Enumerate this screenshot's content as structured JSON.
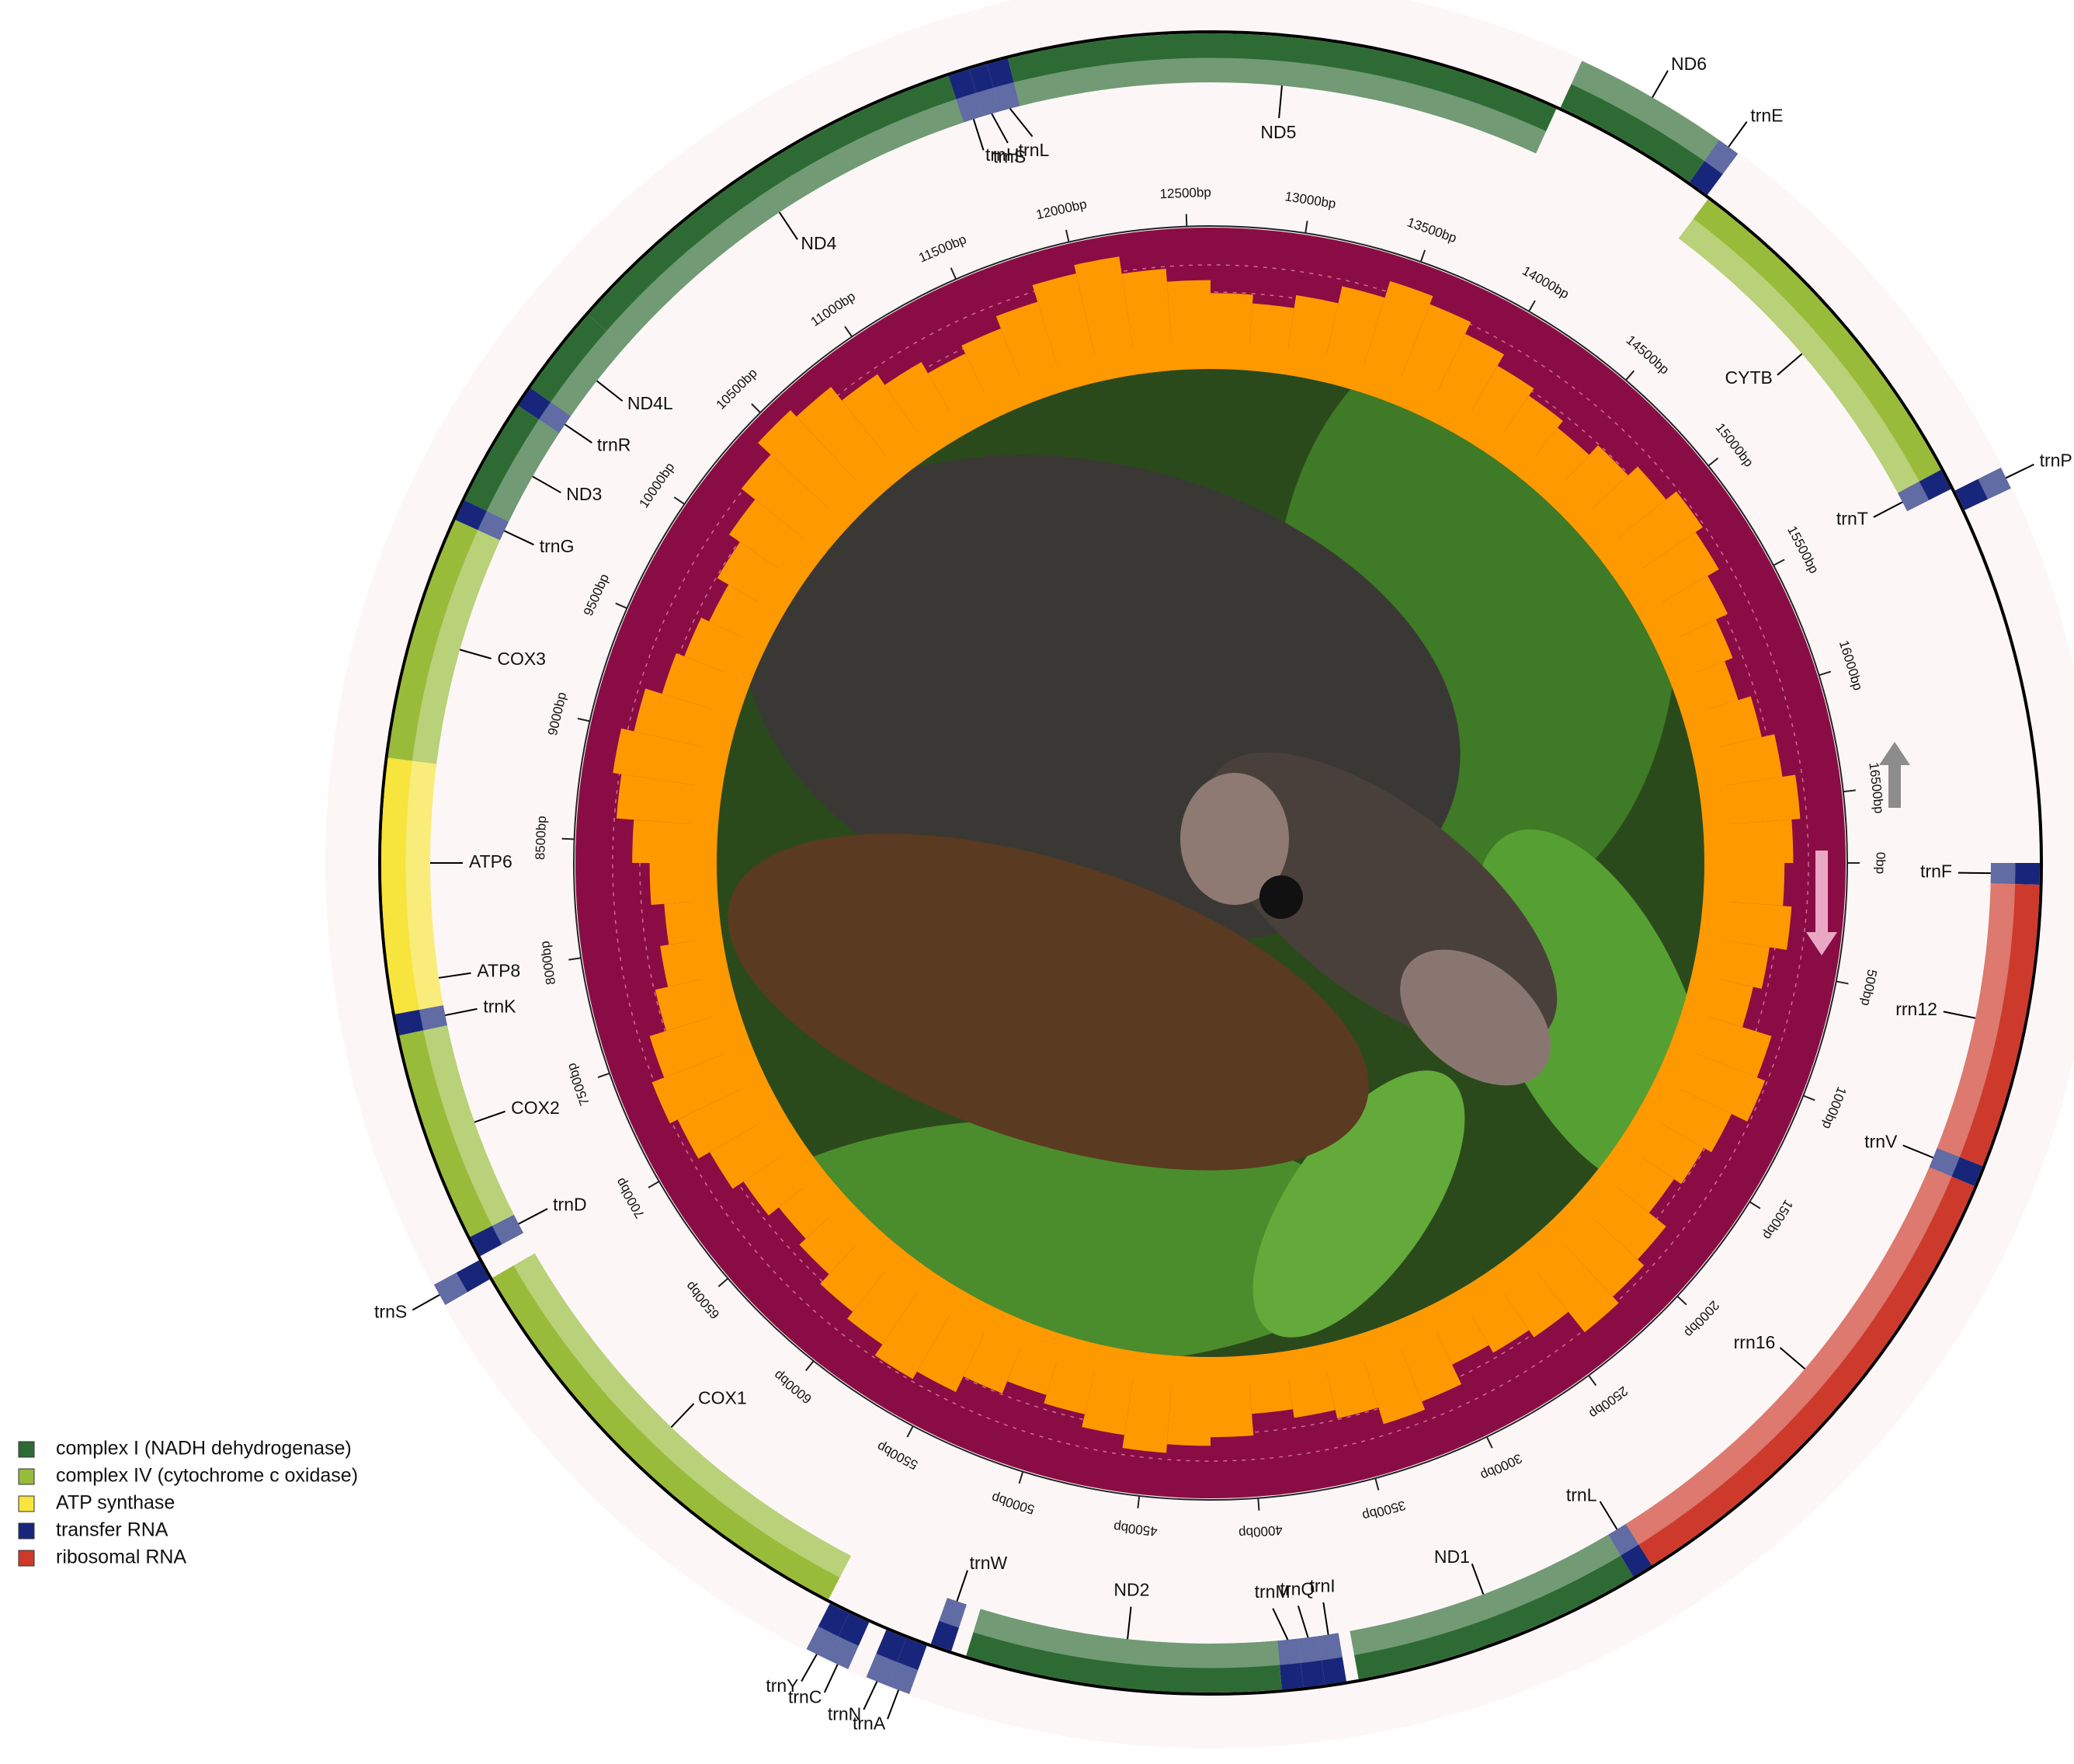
{
  "axis": {
    "xlim": [
      0,
      16800
    ],
    "ticks": [
      {
        "value": 0,
        "label": "0bp"
      },
      {
        "value": 500,
        "label": "500bp"
      },
      {
        "value": 1000,
        "label": "1000bp"
      },
      {
        "value": 1500,
        "label": "1500bp"
      },
      {
        "value": 2000,
        "label": "2000bp"
      },
      {
        "value": 2500,
        "label": "2500bp"
      },
      {
        "value": 3000,
        "label": "3000bp"
      },
      {
        "value": 3500,
        "label": "3500bp"
      },
      {
        "value": 4000,
        "label": "4000bp"
      },
      {
        "value": 4500,
        "label": "4500bp"
      },
      {
        "value": 5000,
        "label": "5000bp"
      },
      {
        "value": 5500,
        "label": "5500bp"
      },
      {
        "value": 6000,
        "label": "6000bp"
      },
      {
        "value": 6500,
        "label": "6500bp"
      },
      {
        "value": 7000,
        "label": "7000bp"
      },
      {
        "value": 7500,
        "label": "7500bp"
      },
      {
        "value": 8000,
        "label": "8000bp"
      },
      {
        "value": 8500,
        "label": "8500bp"
      },
      {
        "value": 9000,
        "label": "9000bp"
      },
      {
        "value": 9500,
        "label": "9500bp"
      },
      {
        "value": 10000,
        "label": "10000bp"
      },
      {
        "value": 10500,
        "label": "10500bp"
      },
      {
        "value": 11000,
        "label": "11000bp"
      },
      {
        "value": 11500,
        "label": "11500bp"
      },
      {
        "value": 12000,
        "label": "12000bp"
      },
      {
        "value": 12500,
        "label": "12500bp"
      },
      {
        "value": 13000,
        "label": "13000bp"
      },
      {
        "value": 13500,
        "label": "13500bp"
      },
      {
        "value": 14000,
        "label": "14000bp"
      },
      {
        "value": 14500,
        "label": "14500bp"
      },
      {
        "value": 15000,
        "label": "15000bp"
      },
      {
        "value": 15500,
        "label": "15500bp"
      },
      {
        "value": 16000,
        "label": "16000bp"
      },
      {
        "value": 16500,
        "label": "16500bp"
      }
    ]
  },
  "legend": [
    {
      "name": "complex I (NADH dehydrogenase)",
      "color": "#2e6b34"
    },
    {
      "name": "complex IV (cytochrome c oxidase)",
      "color": "#99bb3a"
    },
    {
      "name": "ATP synthase",
      "color": "#f7e43c"
    },
    {
      "name": "transfer RNA",
      "color": "#17267a"
    },
    {
      "name": "ribosomal RNA",
      "color": "#cd3a2c"
    }
  ],
  "genes": [
    {
      "name": "trnF",
      "group": 3,
      "start": 0,
      "end": 70,
      "strand": "+"
    },
    {
      "name": "rrn12",
      "group": 4,
      "start": 70,
      "end": 1000,
      "strand": "+"
    },
    {
      "name": "trnV",
      "group": 3,
      "start": 1000,
      "end": 1070,
      "strand": "+"
    },
    {
      "name": "rrn16",
      "group": 4,
      "start": 1070,
      "end": 2700,
      "strand": "+"
    },
    {
      "name": "trnL",
      "group": 3,
      "start": 2700,
      "end": 2770,
      "strand": "+"
    },
    {
      "name": "ND1",
      "group": 0,
      "start": 2770,
      "end": 3720,
      "strand": "+"
    },
    {
      "name": "trnI",
      "group": 3,
      "start": 3760,
      "end": 3830,
      "strand": "+"
    },
    {
      "name": "trnQ",
      "group": 3,
      "start": 3830,
      "end": 3900,
      "strand": "+"
    },
    {
      "name": "trnM",
      "group": 3,
      "start": 3900,
      "end": 3970,
      "strand": "+"
    },
    {
      "name": "ND2",
      "group": 0,
      "start": 3970,
      "end": 5000,
      "strand": "+"
    },
    {
      "name": "trnW",
      "group": 3,
      "start": 5050,
      "end": 5120,
      "strand": "+"
    },
    {
      "name": "trnA",
      "group": 3,
      "start": 5130,
      "end": 5200,
      "strand": "-"
    },
    {
      "name": "trnN",
      "group": 3,
      "start": 5200,
      "end": 5270,
      "strand": "-"
    },
    {
      "name": "trnC",
      "group": 3,
      "start": 5330,
      "end": 5400,
      "strand": "-"
    },
    {
      "name": "trnY",
      "group": 3,
      "start": 5400,
      "end": 5470,
      "strand": "-"
    },
    {
      "name": "COX1",
      "group": 1,
      "start": 5480,
      "end": 7000,
      "strand": "+"
    },
    {
      "name": "trnS",
      "group": 3,
      "start": 7000,
      "end": 7070,
      "strand": "-"
    },
    {
      "name": "trnD",
      "group": 3,
      "start": 7080,
      "end": 7150,
      "strand": "+"
    },
    {
      "name": "COX2",
      "group": 1,
      "start": 7150,
      "end": 7840,
      "strand": "+"
    },
    {
      "name": "trnK",
      "group": 3,
      "start": 7840,
      "end": 7910,
      "strand": "+"
    },
    {
      "name": "ATP8",
      "group": 2,
      "start": 7910,
      "end": 8100,
      "strand": "+"
    },
    {
      "name": "ATP6",
      "group": 2,
      "start": 8060,
      "end": 8740,
      "strand": "+"
    },
    {
      "name": "COX3",
      "group": 1,
      "start": 8740,
      "end": 9540,
      "strand": "+"
    },
    {
      "name": "trnG",
      "group": 3,
      "start": 9540,
      "end": 9610,
      "strand": "+"
    },
    {
      "name": "ND3",
      "group": 0,
      "start": 9610,
      "end": 9960,
      "strand": "+"
    },
    {
      "name": "trnR",
      "group": 3,
      "start": 9960,
      "end": 10030,
      "strand": "+"
    },
    {
      "name": "ND4L",
      "group": 0,
      "start": 10030,
      "end": 10330,
      "strand": "+"
    },
    {
      "name": "ND4",
      "group": 0,
      "start": 10330,
      "end": 11740,
      "strand": "+"
    },
    {
      "name": "trnH",
      "group": 3,
      "start": 11740,
      "end": 11810,
      "strand": "+"
    },
    {
      "name": "trnS",
      "group": 3,
      "start": 11810,
      "end": 11870,
      "strand": "+"
    },
    {
      "name": "trnL",
      "group": 3,
      "start": 11870,
      "end": 11940,
      "strand": "+"
    },
    {
      "name": "ND5",
      "group": 0,
      "start": 11940,
      "end": 13750,
      "strand": "+"
    },
    {
      "name": "ND6",
      "group": 0,
      "start": 13760,
      "end": 14240,
      "strand": "-"
    },
    {
      "name": "trnE",
      "group": 3,
      "start": 14240,
      "end": 14310,
      "strand": "-"
    },
    {
      "name": "CYTB",
      "group": 1,
      "start": 14320,
      "end": 15480,
      "strand": "+"
    },
    {
      "name": "trnT",
      "group": 3,
      "start": 15480,
      "end": 15550,
      "strand": "+"
    },
    {
      "name": "trnP",
      "group": 3,
      "start": 15560,
      "end": 15630,
      "strand": "-"
    }
  ],
  "gc_content": {
    "ylim": [
      30,
      55
    ],
    "color": "#ff9900",
    "values": [
      42,
      44,
      40,
      38,
      45,
      47,
      43,
      41,
      39,
      44,
      46,
      48,
      42,
      40,
      38,
      43,
      45,
      41,
      39,
      37,
      42,
      44,
      46,
      43,
      40,
      38,
      41,
      45,
      47,
      44,
      42,
      39,
      37,
      40,
      43,
      46,
      48,
      45,
      41,
      38,
      36,
      39,
      43,
      47,
      49,
      46,
      42,
      40,
      38,
      41,
      44,
      48,
      52,
      50,
      46,
      43,
      40,
      42,
      45,
      49,
      51,
      47,
      44,
      41,
      39,
      42,
      46,
      50,
      48,
      45,
      42,
      40,
      38,
      41,
      44,
      47,
      45,
      42,
      39,
      37,
      40,
      43,
      46,
      44
    ]
  }
}
